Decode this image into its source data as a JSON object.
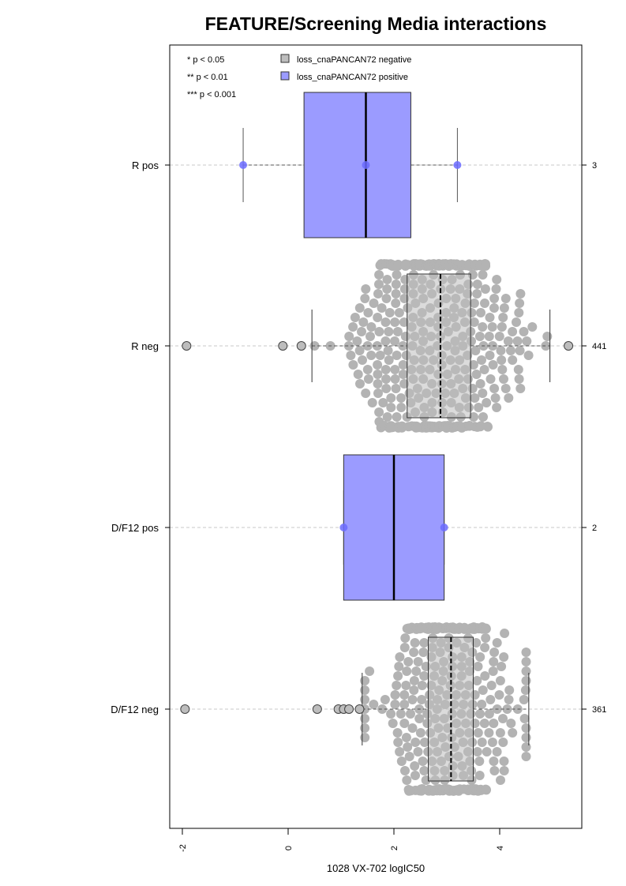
{
  "chart_data": {
    "type": "boxplot-beeswarm",
    "title": "FEATURE/Screening Media interactions",
    "xlabel": "1028 VX-702 logIC50",
    "ylabel": "",
    "xlim": [
      -2.2,
      5.6
    ],
    "x_ticks": [
      -2,
      0,
      2,
      4
    ],
    "x_tick_labels": [
      "-2",
      "0",
      "2",
      "4"
    ],
    "orientation": "horizontal",
    "grid": "dashed horizontal guides at each group",
    "legend": {
      "placement": "top-left",
      "significance": [
        "* p < 0.05",
        "** p < 0.01",
        "*** p < 0.001"
      ],
      "entries": [
        {
          "label": "loss_cnaPANCAN72 negative",
          "color": "#bdbdbd"
        },
        {
          "label": "loss_cnaPANCAN72 positive",
          "color": "#9b9bff"
        }
      ]
    },
    "colors": {
      "negative_fill": "#bdbdbd",
      "negative_point": "#b3b3b3",
      "positive_fill": "#9b9bff",
      "positive_point": "#6b6bff"
    },
    "groups": [
      {
        "label": "R pos",
        "count_label": "3",
        "status": "positive",
        "box": {
          "q1": 0.3,
          "median": 1.47,
          "q3": 2.32,
          "whisker_low": -0.85,
          "whisker_high": 3.2
        },
        "points": [
          -0.85,
          1.47,
          3.2
        ],
        "outliers": []
      },
      {
        "label": "R neg",
        "count_label": "441",
        "status": "negative",
        "box": {
          "q1": 2.25,
          "median": 2.88,
          "q3": 3.45,
          "whisker_low": 0.45,
          "whisker_high": 4.95
        },
        "n": 441,
        "mean": 2.8,
        "sd": 0.78,
        "outliers": [
          -1.92,
          -0.1,
          0.25,
          5.3
        ]
      },
      {
        "label": "D/F12 pos",
        "count_label": "2",
        "status": "positive",
        "box": {
          "q1": 1.05,
          "median": 2.0,
          "q3": 2.95,
          "whisker_low": 1.05,
          "whisker_high": 2.95
        },
        "points": [
          1.05,
          2.95
        ],
        "outliers": []
      },
      {
        "label": "D/F12 neg",
        "count_label": "361",
        "status": "negative",
        "box": {
          "q1": 2.65,
          "median": 3.08,
          "q3": 3.5,
          "whisker_low": 1.4,
          "whisker_high": 4.55
        },
        "n": 361,
        "mean": 3.0,
        "sd": 0.65,
        "outliers": [
          -1.95,
          0.55,
          0.95,
          1.05,
          1.15,
          1.35
        ]
      }
    ]
  }
}
